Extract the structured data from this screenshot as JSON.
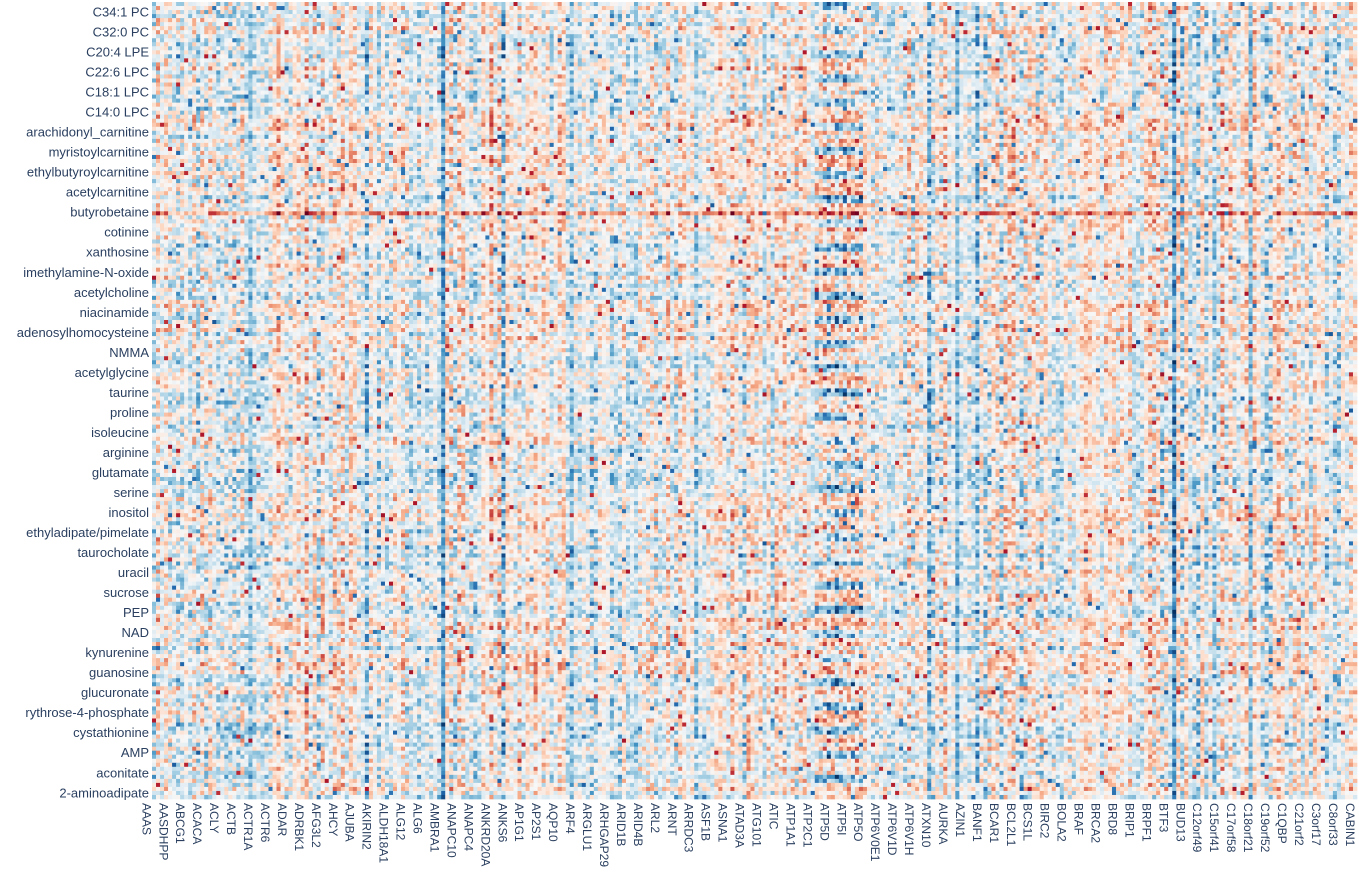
{
  "chart_data": {
    "type": "heatmap",
    "title": "",
    "xlabel": "",
    "ylabel": "",
    "colorscale": [
      "#053061",
      "#2166ac",
      "#4393c3",
      "#92c5de",
      "#d1e5f0",
      "#f7f7f7",
      "#fddbc7",
      "#f4a582",
      "#d6604d",
      "#b2182b",
      "#67001f"
    ],
    "n_rows": 198,
    "n_cols": 300,
    "y_tick_labels": [
      "C34:1 PC",
      "C32:0 PC",
      "C20:4 LPE",
      "C22:6 LPC",
      "C18:1 LPC",
      "C14:0 LPC",
      "arachidonyl_carnitine",
      "myristoylcarnitine",
      "ethylbutyroylcarnitine",
      "acetylcarnitine",
      "butyrobetaine",
      "cotinine",
      "xanthosine",
      "imethylamine-N-oxide",
      "acetylcholine",
      "niacinamide",
      "adenosylhomocysteine",
      "NMMA",
      "acetylglycine",
      "taurine",
      "proline",
      "isoleucine",
      "arginine",
      "glutamate",
      "serine",
      "inositol",
      "ethyladipate/pimelate",
      "taurocholate",
      "uracil",
      "sucrose",
      "PEP",
      "NAD",
      "kynurenine",
      "guanosine",
      "glucuronate",
      "rythrose-4-phosphate",
      "cystathionine",
      "AMP",
      "aconitate",
      "2-aminoadipate"
    ],
    "x_tick_labels": [
      "AAAS",
      "AASDHPP",
      "ABCG1",
      "ACACA",
      "ACLY",
      "ACTB",
      "ACTR1A",
      "ACTR6",
      "ADAR",
      "ADRBK1",
      "AFG3L2",
      "AHCY",
      "AJUBA",
      "AKIRIN2",
      "ALDH18A1",
      "ALG12",
      "ALG6",
      "AMBRA1",
      "ANAPC10",
      "ANAPC4",
      "ANKRD20A",
      "ANKS6",
      "AP1G1",
      "AP2S1",
      "AQP10",
      "ARF4",
      "ARGLU1",
      "ARHGAP29",
      "ARID1B",
      "ARID4B",
      "ARL2",
      "ARNT",
      "ARRDC3",
      "ASF1B",
      "ASNA1",
      "ATAD3A",
      "ATG101",
      "ATIC",
      "ATP1A1",
      "ATP2C1",
      "ATP5D",
      "ATP5I",
      "ATP5O",
      "ATP6V0E1",
      "ATP6V1D",
      "ATP6V1H",
      "ATXN10",
      "AURKA",
      "AZIN1",
      "BANF1",
      "BCAR1",
      "BCL2L1",
      "BCS1L",
      "BIRC2",
      "BOLA2",
      "BRAF",
      "BRCA2",
      "BRD8",
      "BRIP1",
      "BRPF1",
      "BTF3",
      "BUD13",
      "C12orf49",
      "C15orf41",
      "C17orf58",
      "C18orf21",
      "C19orf52",
      "C1QBP",
      "C21orf2",
      "C3orf17",
      "C8orf33",
      "CABIN1"
    ]
  }
}
